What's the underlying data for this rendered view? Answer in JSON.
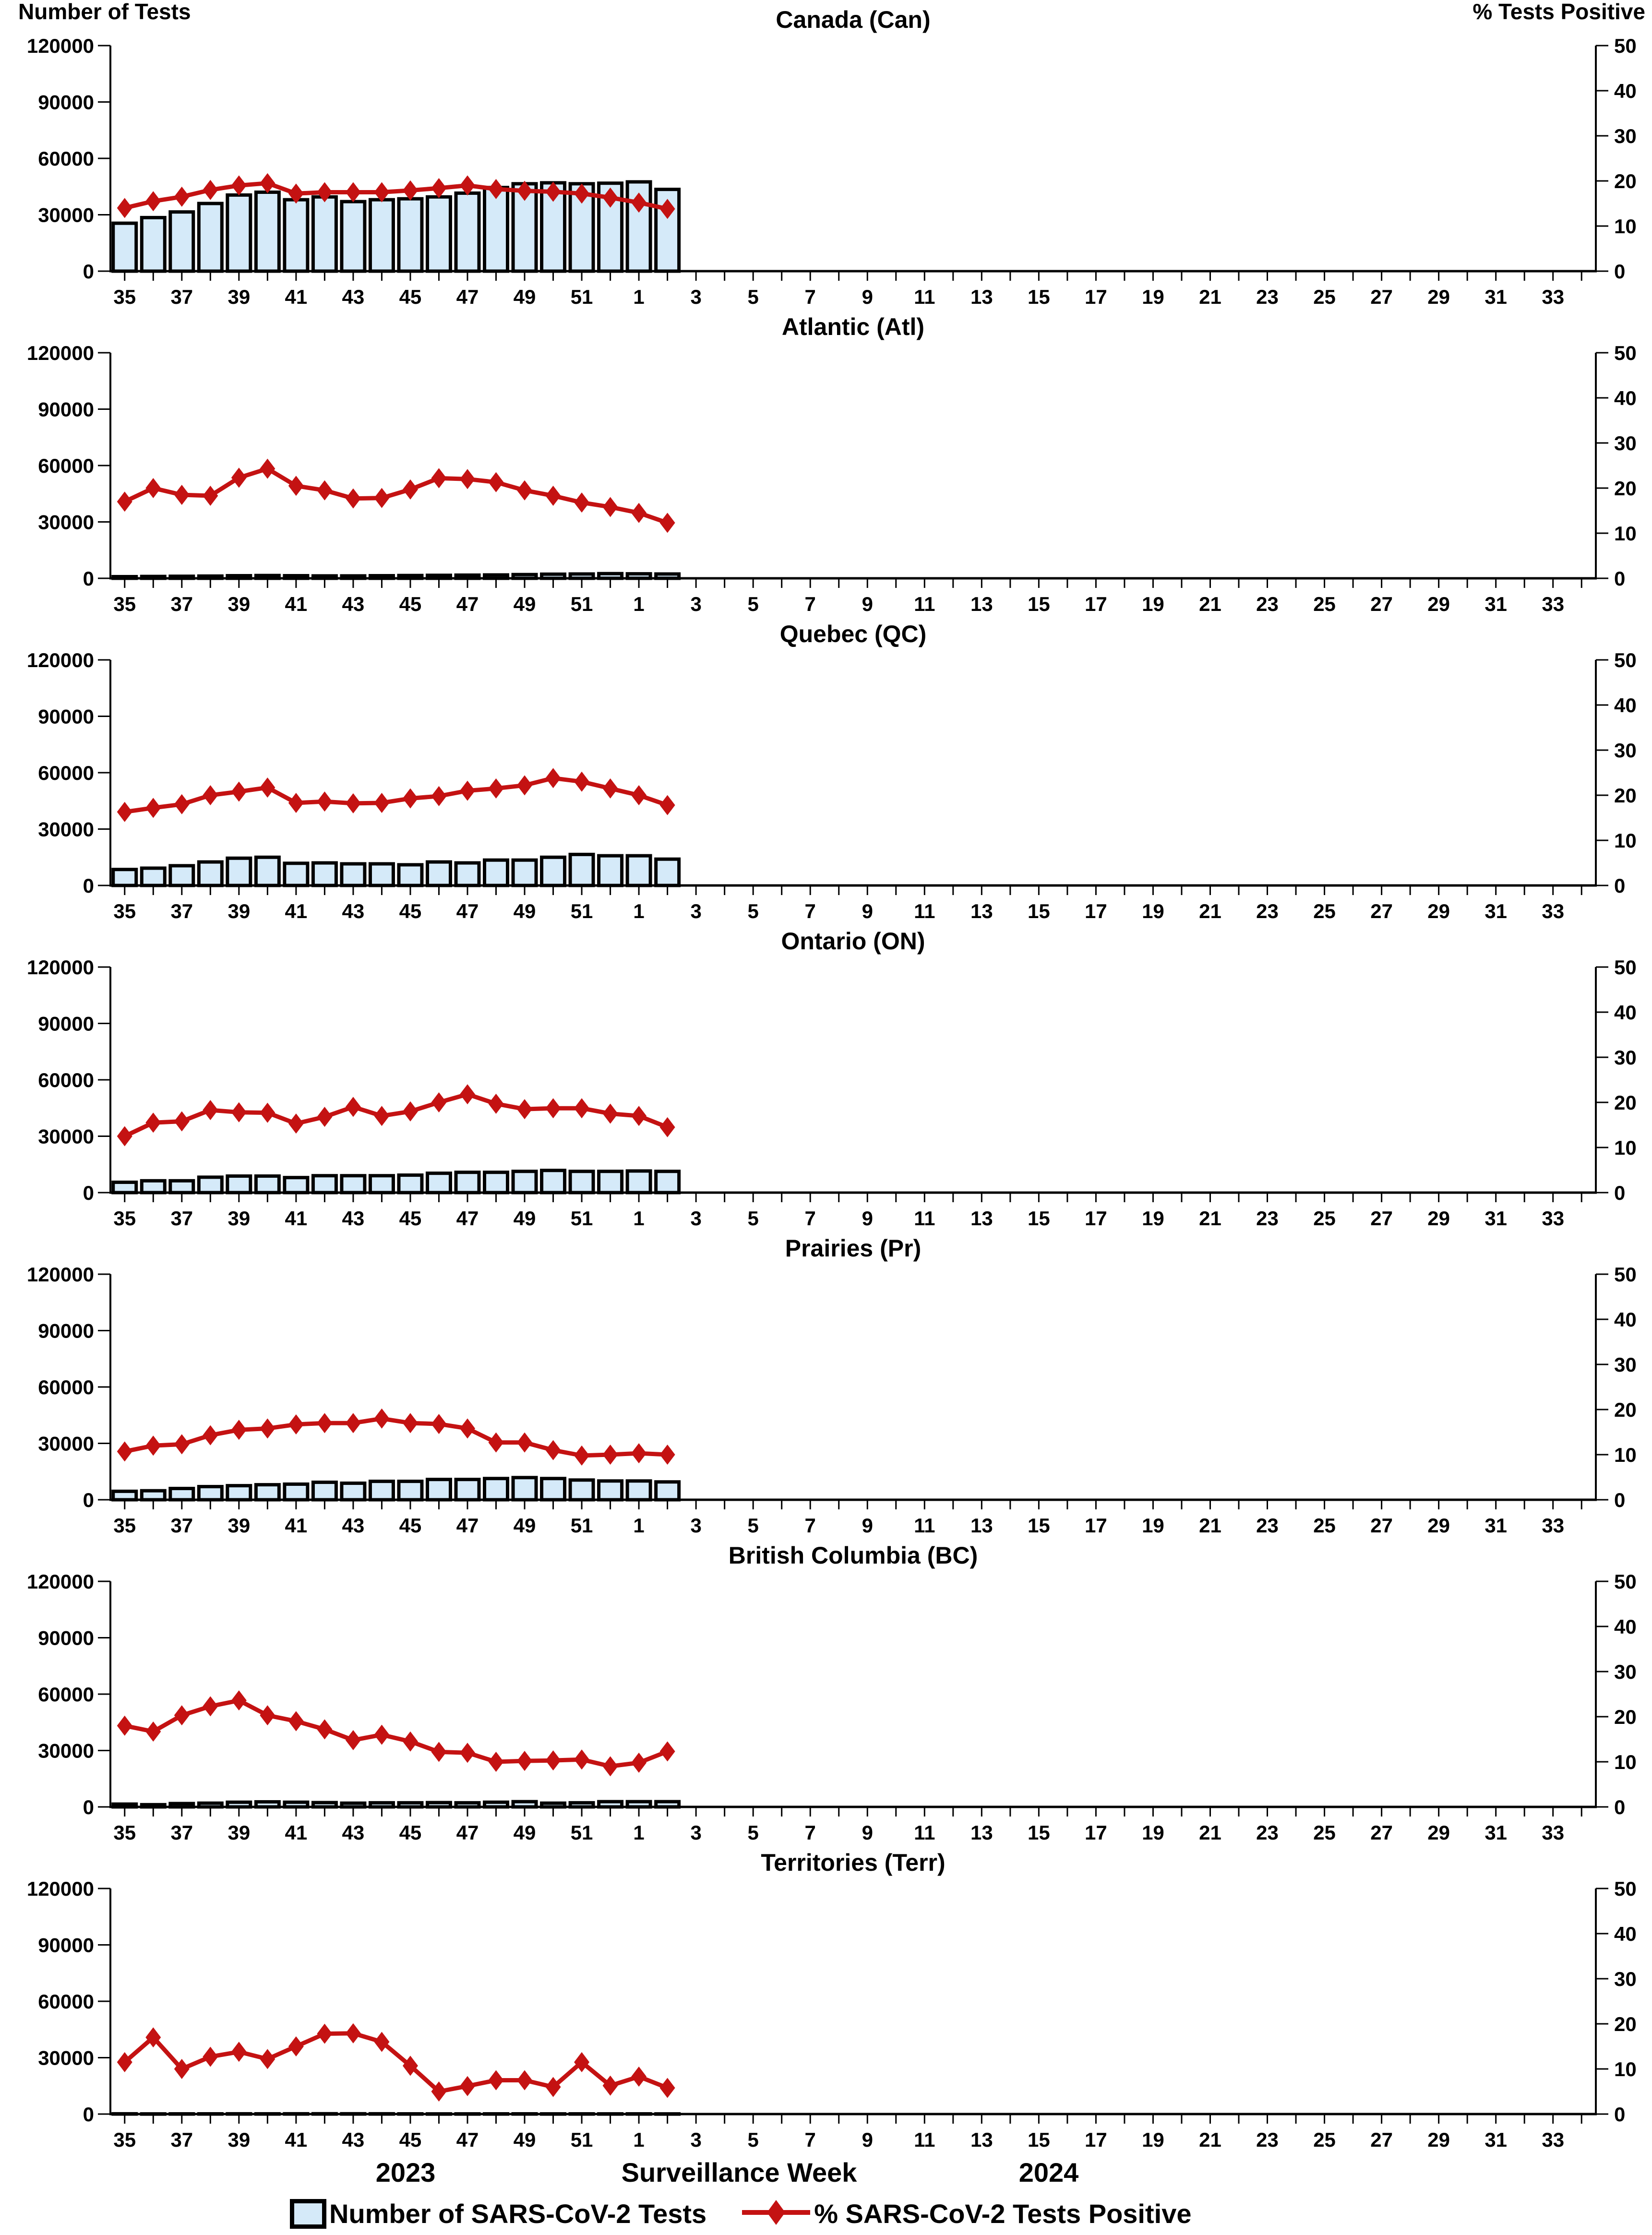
{
  "header": {
    "left_axis_title": "Number of Tests",
    "right_axis_title": "% Tests Positive"
  },
  "footer": {
    "year_left": "2023",
    "x_axis_title": "Surveillance Week",
    "year_right": "2024"
  },
  "legend": {
    "bar_label": "Number of SARS-CoV-2 Tests",
    "line_label": "% SARS-CoV-2 Tests Positive"
  },
  "colors": {
    "bar_fill": "#D5EAF9",
    "bar_stroke": "#000000",
    "line_color": "#C41212",
    "axis_color": "#000000",
    "text_color": "#000000"
  },
  "chart_data": {
    "type": "bar+line",
    "layout_hint": "7 stacked panels sharing x axis; bars on left axis, line on right axis; no gridlines; legend bottom center",
    "x_axis": {
      "weeks_2023": [
        35,
        36,
        37,
        38,
        39,
        40,
        41,
        42,
        43,
        44,
        45,
        46,
        47,
        48,
        49,
        50,
        51,
        52
      ],
      "weeks_2024": [
        1,
        2,
        3,
        4,
        5,
        6,
        7,
        8,
        9,
        10,
        11,
        12,
        13,
        14,
        15,
        16,
        17,
        18,
        19,
        20,
        21,
        22,
        23,
        24,
        25,
        26,
        27,
        28,
        29,
        30,
        31,
        32,
        33,
        34
      ],
      "tick_labels": [
        35,
        37,
        39,
        41,
        43,
        45,
        47,
        49,
        51,
        1,
        3,
        5,
        7,
        9,
        11,
        13,
        15,
        17,
        19,
        21,
        23,
        25,
        27,
        29,
        31,
        33
      ]
    },
    "left_axis": {
      "title": "Number of Tests",
      "ticks": [
        0,
        30000,
        60000,
        90000,
        120000
      ],
      "tick_labels": [
        "0",
        "30000",
        "60000",
        "90000",
        "120000"
      ],
      "range": [
        0,
        120000
      ]
    },
    "right_axis": {
      "title": "% Tests Positive",
      "ticks": [
        0,
        10,
        20,
        30,
        40,
        50
      ],
      "tick_labels": [
        "0",
        "10",
        "20",
        "30",
        "40",
        "50"
      ],
      "range": [
        0,
        50
      ]
    },
    "data_week_labels": [
      35,
      36,
      37,
      38,
      39,
      40,
      41,
      42,
      43,
      44,
      45,
      46,
      47,
      48,
      49,
      50,
      51,
      52,
      1,
      2
    ],
    "series_names": [
      "Number of SARS-CoV-2 Tests",
      "% SARS-CoV-2 Tests Positive"
    ],
    "panels": [
      {
        "title": "Canada (Can)",
        "abbr": "Can",
        "tests": [
          25500,
          28500,
          31500,
          36000,
          40500,
          42000,
          38000,
          39500,
          37000,
          38000,
          38500,
          39500,
          41500,
          44500,
          46500,
          47000,
          46500,
          46800,
          47500,
          43500
        ],
        "pct_positive": [
          14,
          15.5,
          16.5,
          18,
          19,
          19.5,
          17.2,
          17.5,
          17.5,
          17.5,
          17.9,
          18.4,
          19,
          18.2,
          17.8,
          17.6,
          17.2,
          16.3,
          15.2,
          13.8
        ]
      },
      {
        "title": "Atlantic (Atl)",
        "abbr": "Atl",
        "tests": [
          900,
          1000,
          1100,
          1200,
          1400,
          1500,
          1400,
          1300,
          1300,
          1400,
          1500,
          1600,
          1700,
          1800,
          2000,
          2200,
          2300,
          2500,
          2400,
          2300
        ],
        "pct_positive": [
          17,
          20,
          18.5,
          18.3,
          22.3,
          24.3,
          20.5,
          19.5,
          17.7,
          17.8,
          19.7,
          22.2,
          22,
          21.3,
          19.5,
          18.3,
          16.8,
          15.8,
          14.5,
          12.3
        ]
      },
      {
        "title": "Quebec (QC)",
        "abbr": "QC",
        "tests": [
          8500,
          9200,
          10500,
          12500,
          14500,
          15000,
          11800,
          12000,
          11500,
          11500,
          11000,
          12500,
          12000,
          13500,
          13500,
          15000,
          16500,
          15800,
          15800,
          14000
        ],
        "pct_positive": [
          16.3,
          17.2,
          18,
          20,
          20.8,
          21.7,
          18.3,
          18.6,
          18.2,
          18.3,
          19.3,
          19.8,
          21,
          21.5,
          22.2,
          23.8,
          23,
          21.5,
          20,
          17.8
        ]
      },
      {
        "title": "Ontario (ON)",
        "abbr": "ON",
        "tests": [
          5500,
          6300,
          6300,
          8200,
          8800,
          8800,
          8000,
          9000,
          9000,
          9000,
          9300,
          10300,
          10800,
          10800,
          11300,
          11800,
          11300,
          11300,
          11500,
          11300
        ],
        "pct_positive": [
          12.5,
          15.5,
          15.8,
          18.3,
          17.8,
          17.7,
          15.3,
          16.8,
          19,
          17,
          18,
          20,
          21.8,
          19.7,
          18.5,
          18.7,
          18.7,
          17.5,
          17,
          14.5
        ]
      },
      {
        "title": "Prairies (Pr)",
        "abbr": "Pr",
        "tests": [
          4500,
          4800,
          6000,
          7000,
          7500,
          8000,
          8300,
          9300,
          8800,
          9800,
          9800,
          10800,
          10800,
          11300,
          11800,
          11300,
          10500,
          10000,
          10000,
          9500
        ],
        "pct_positive": [
          10.7,
          12,
          12.3,
          14.3,
          15.5,
          15.8,
          16.7,
          17,
          17,
          18,
          17,
          16.8,
          15.8,
          12.7,
          12.7,
          11,
          9.8,
          10,
          10.3,
          10
        ]
      },
      {
        "title": "British Columbia (BC)",
        "abbr": "BC",
        "tests": [
          1500,
          1200,
          1800,
          2000,
          2500,
          2700,
          2500,
          2300,
          2000,
          2200,
          2200,
          2300,
          2200,
          2500,
          2800,
          2000,
          2200,
          2800,
          2800,
          2800
        ],
        "pct_positive": [
          18,
          16.7,
          20.3,
          22.3,
          23.6,
          20.3,
          19,
          17.2,
          14.8,
          16,
          14.5,
          12.2,
          12,
          10,
          10.2,
          10.3,
          10.5,
          9,
          9.8,
          12.3
        ]
      },
      {
        "title": "Territories (Terr)",
        "abbr": "Terr",
        "tests": [
          150,
          100,
          120,
          130,
          150,
          140,
          160,
          180,
          170,
          160,
          120,
          100,
          110,
          120,
          130,
          110,
          120,
          110,
          120,
          100
        ],
        "pct_positive": [
          11.5,
          17,
          10,
          12.7,
          13.8,
          12.2,
          15,
          17.8,
          17.9,
          16,
          10.7,
          5,
          6.2,
          7.5,
          7.5,
          6,
          11.5,
          6.3,
          8.3,
          5.8
        ]
      }
    ]
  }
}
